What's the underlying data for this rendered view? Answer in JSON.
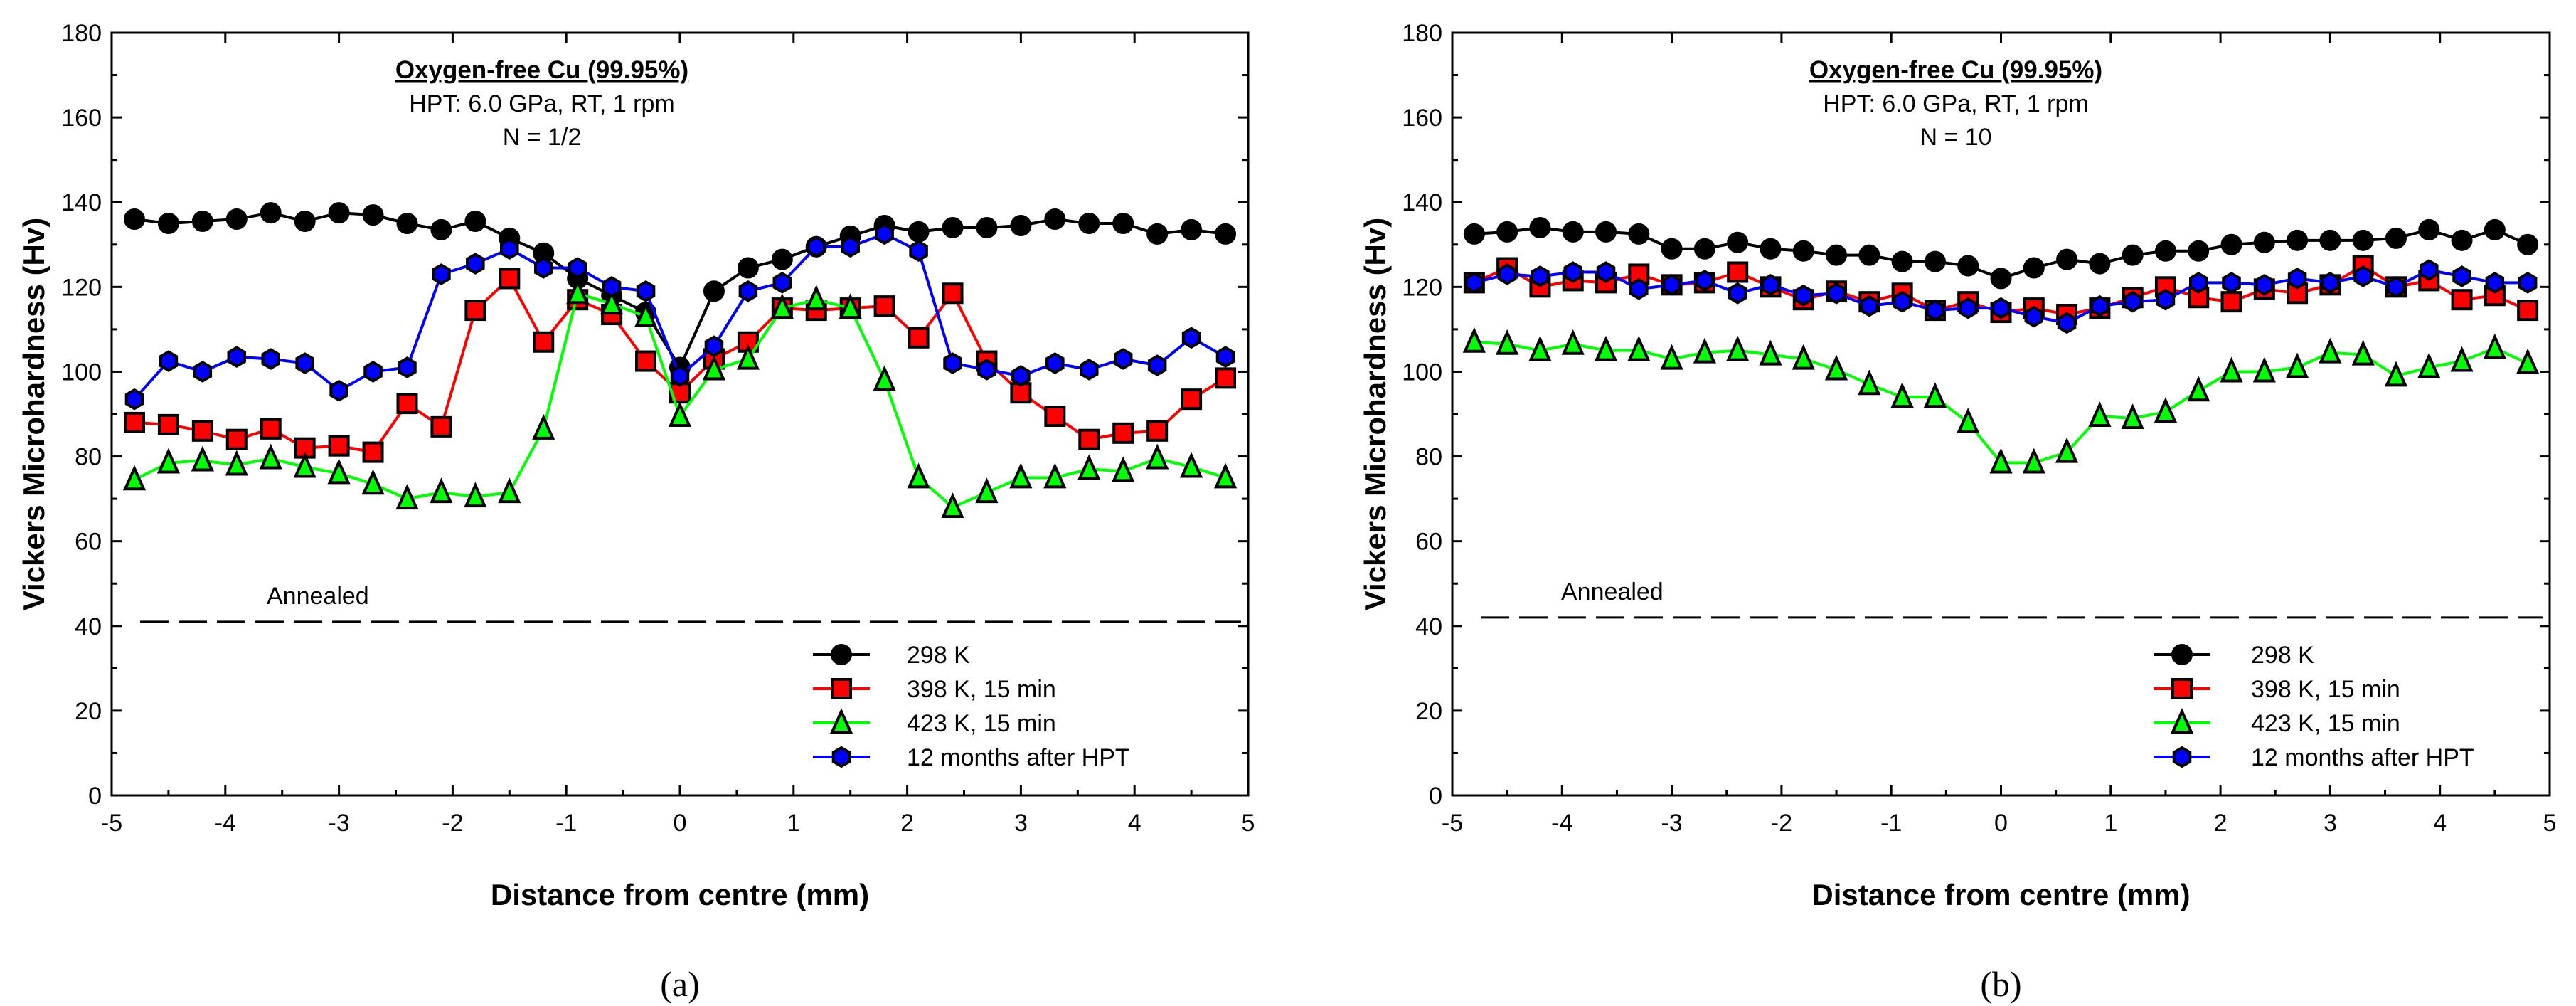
{
  "chart_data": [
    {
      "type": "line",
      "panel_label": "(a)",
      "title": "Oxygen-free Cu (99.95%)",
      "subtitle": "HPT: 6.0 GPa, RT, 1 rpm",
      "condition": "N = 1/2",
      "xlabel": "Distance from centre (mm)",
      "ylabel": "Vickers Microhardness (Hv)",
      "xlim": [
        -5,
        5
      ],
      "ylim": [
        0,
        180
      ],
      "xticks": [
        "-5",
        "-4",
        "-3",
        "-2",
        "-1",
        "0",
        "1",
        "2",
        "3",
        "4",
        "5"
      ],
      "yticks": [
        "0",
        "20",
        "40",
        "60",
        "80",
        "100",
        "120",
        "140",
        "160",
        "180"
      ],
      "legend_position": "bottom-right",
      "reference": {
        "label": "Annealed",
        "value": 41
      },
      "x": [
        -4.8,
        -4.5,
        -4.2,
        -3.9,
        -3.6,
        -3.3,
        -3.0,
        -2.7,
        -2.4,
        -2.1,
        -1.8,
        -1.5,
        -1.2,
        -0.9,
        -0.6,
        -0.3,
        0,
        0.3,
        0.6,
        0.9,
        1.2,
        1.5,
        1.8,
        2.1,
        2.4,
        2.7,
        3.0,
        3.3,
        3.6,
        3.9,
        4.2,
        4.5,
        4.8
      ],
      "series": [
        {
          "name": "298 K",
          "color": "#000000",
          "marker": "circle",
          "values": [
            136,
            135,
            135.5,
            136,
            137.5,
            135.5,
            137.5,
            137,
            135,
            133.5,
            135.5,
            131.5,
            128,
            122,
            118,
            114,
            101,
            119,
            124.5,
            126.5,
            129.5,
            132,
            134.5,
            133,
            134,
            134,
            134.5,
            136,
            135,
            135,
            132.5,
            133.5,
            132.5
          ]
        },
        {
          "name": "398 K, 15 min",
          "color": "#ff0000",
          "marker": "square",
          "values": [
            88,
            87.5,
            86,
            84,
            86.5,
            82,
            82.5,
            81,
            92.5,
            87,
            114.5,
            122,
            107,
            117,
            113.5,
            102.5,
            95,
            103,
            107,
            115,
            114.5,
            115,
            115.5,
            108,
            118.5,
            102.5,
            95,
            89.5,
            84,
            85.5,
            86,
            93.5,
            98.5
          ]
        },
        {
          "name": "423 K, 15 min",
          "color": "#00ff00",
          "marker": "triangle",
          "values": [
            74.5,
            78.5,
            79,
            78,
            79.5,
            77.5,
            76,
            73.5,
            70,
            71.5,
            70.5,
            71.5,
            86.5,
            118.5,
            116,
            113,
            89.5,
            100.5,
            103,
            115,
            117,
            115,
            98,
            75,
            68,
            71.5,
            75,
            75,
            77,
            76.5,
            79.5,
            77.5,
            75
          ]
        },
        {
          "name": "12 months after HPT",
          "color": "#0000ff",
          "marker": "hexagon",
          "values": [
            93.5,
            102.5,
            100,
            103.5,
            103,
            102,
            95.5,
            100,
            101,
            123,
            125.5,
            129,
            124.5,
            124.5,
            120,
            119,
            99,
            106,
            119,
            121,
            129.5,
            129.5,
            132.5,
            128.5,
            102,
            100.5,
            99,
            102,
            100.5,
            103,
            101.5,
            108,
            103.5
          ]
        }
      ]
    },
    {
      "type": "line",
      "panel_label": "(b)",
      "title": "Oxygen-free Cu (99.95%)",
      "subtitle": "HPT: 6.0 GPa, RT, 1 rpm",
      "condition": "N = 10",
      "xlabel": "Distance from centre (mm)",
      "ylabel": "Vickers Microhardness (Hv)",
      "xlim": [
        -5,
        5
      ],
      "ylim": [
        0,
        180
      ],
      "xticks": [
        "-5",
        "-4",
        "-3",
        "-2",
        "-1",
        "0",
        "1",
        "2",
        "3",
        "4",
        "5"
      ],
      "yticks": [
        "0",
        "20",
        "40",
        "60",
        "80",
        "100",
        "120",
        "140",
        "160",
        "180"
      ],
      "legend_position": "bottom-right",
      "reference": {
        "label": "Annealed",
        "value": 42
      },
      "x": [
        -4.8,
        -4.5,
        -4.2,
        -3.9,
        -3.6,
        -3.3,
        -3.0,
        -2.7,
        -2.4,
        -2.1,
        -1.8,
        -1.5,
        -1.2,
        -0.9,
        -0.6,
        -0.3,
        0,
        0.3,
        0.6,
        0.9,
        1.2,
        1.5,
        1.8,
        2.1,
        2.4,
        2.7,
        3.0,
        3.3,
        3.6,
        3.9,
        4.2,
        4.5,
        4.8
      ],
      "series": [
        {
          "name": "298 K",
          "color": "#000000",
          "marker": "circle",
          "values": [
            132.5,
            133,
            134,
            133,
            133,
            132.5,
            129,
            129,
            130.5,
            129,
            128.5,
            127.5,
            127.5,
            126,
            126,
            125,
            122,
            124.5,
            126.5,
            125.5,
            127.5,
            128.5,
            128.5,
            130,
            130.5,
            131,
            131,
            131,
            131.5,
            133.5,
            131,
            133.5,
            130
          ]
        },
        {
          "name": "398 K, 15 min",
          "color": "#ff0000",
          "marker": "square",
          "values": [
            121,
            124.5,
            120,
            121.5,
            121,
            123,
            120.5,
            121,
            123.5,
            120,
            117,
            119,
            116.5,
            118.5,
            114.5,
            116.5,
            114,
            115,
            113.5,
            115,
            117.5,
            120,
            117.5,
            116.5,
            119.5,
            118.5,
            120.5,
            125,
            120,
            121.5,
            117,
            118,
            114.5
          ]
        },
        {
          "name": "423 K, 15 min",
          "color": "#00ff00",
          "marker": "triangle",
          "values": [
            107,
            106.5,
            105,
            106.5,
            105,
            105,
            103,
            104.5,
            105,
            104,
            103,
            100.5,
            97,
            94,
            94,
            88,
            78.5,
            78.5,
            81,
            89.5,
            89,
            90.5,
            95.5,
            100,
            100,
            101,
            104.5,
            104,
            99,
            101,
            102.5,
            105.5,
            102
          ]
        },
        {
          "name": "12 months after HPT",
          "color": "#0000ff",
          "marker": "hexagon",
          "values": [
            121,
            123,
            122.5,
            123.5,
            123.5,
            119.5,
            120.5,
            121.5,
            118.5,
            120.5,
            118,
            118.5,
            115.5,
            116.5,
            114.5,
            115,
            115,
            113,
            111.5,
            115.5,
            116.5,
            117,
            121,
            121,
            120.5,
            122,
            121,
            122.5,
            120,
            124,
            122.5,
            121,
            121
          ]
        }
      ]
    }
  ]
}
